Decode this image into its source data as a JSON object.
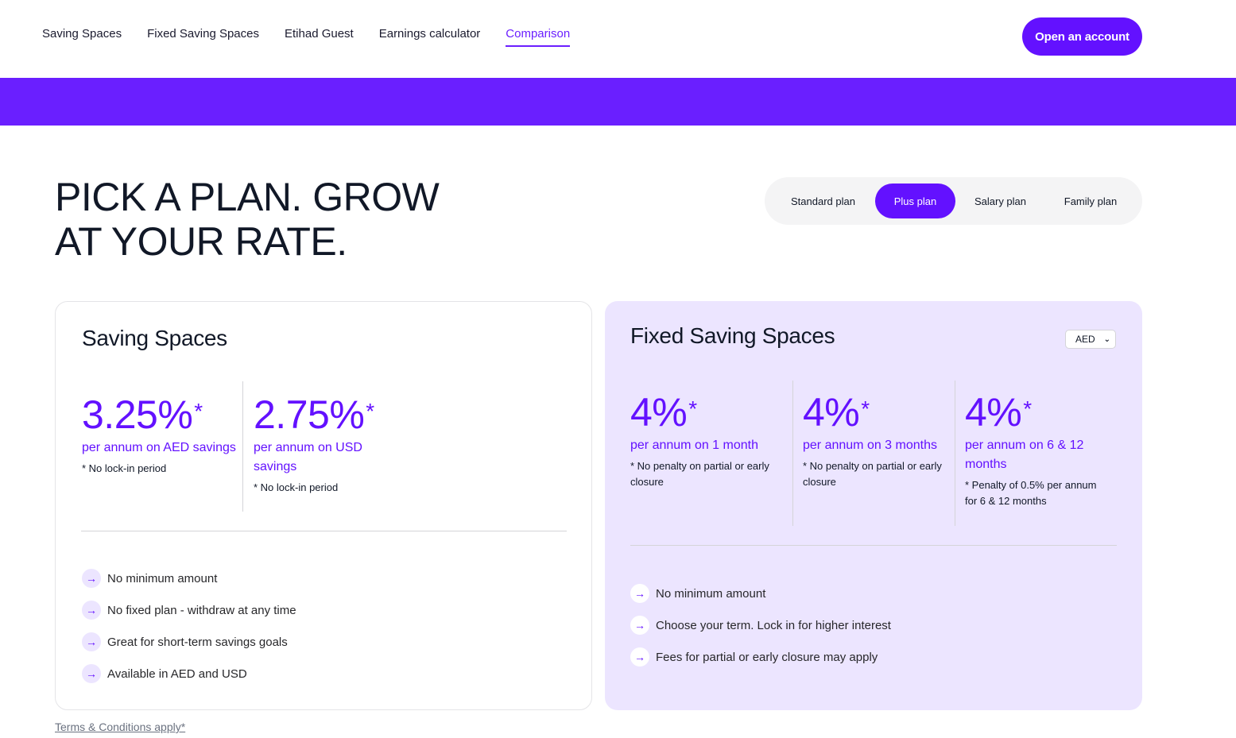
{
  "nav": {
    "links": [
      "Saving Spaces",
      "Fixed Saving Spaces",
      "Etihad Guest",
      "Earnings calculator",
      "Comparison"
    ],
    "active": "Comparison",
    "cta": "Open an account"
  },
  "hero": {
    "title_line1": "PICK A PLAN. GROW",
    "title_line2": "AT YOUR RATE."
  },
  "plans": {
    "tabs": [
      "Standard plan",
      "Plus plan",
      "Salary plan",
      "Family plan"
    ],
    "selected": "Plus plan"
  },
  "saving_spaces": {
    "title": "Saving Spaces",
    "rates": [
      {
        "value": "3.25%",
        "star": "*",
        "label": "per annum on AED savings",
        "note": "* No lock-in period"
      },
      {
        "value": "2.75%",
        "star": "*",
        "label": "per annum on USD savings",
        "note": "* No lock-in period"
      }
    ],
    "features": [
      "No minimum amount",
      "No fixed plan - withdraw at any time",
      "Great for short-term savings goals",
      "Available in AED and USD"
    ]
  },
  "fixed_saving_spaces": {
    "title": "Fixed Saving Spaces",
    "currency": "AED",
    "rates": [
      {
        "value": "4%",
        "star": "*",
        "label": "per annum on 1 month",
        "note": "* No penalty on partial or early closure"
      },
      {
        "value": "4%",
        "star": "*",
        "label": "per annum on 3 months",
        "note": "* No penalty on partial or early closure"
      },
      {
        "value": "4%",
        "star": "*",
        "label": "per annum on 6 & 12 months",
        "note": "* Penalty of 0.5% per annum for 6 & 12 months"
      }
    ],
    "features": [
      "No minimum amount",
      "Choose your term. Lock in for higher interest",
      "Fees for partial or early closure may apply"
    ]
  },
  "footer": {
    "terms": "Terms & Conditions apply*"
  },
  "colors": {
    "accent": "#6311ff",
    "banner": "#6a1fff",
    "fixed_card_bg": "#ece5ff"
  },
  "icons": {
    "feature_bullet": "arrow-right-icon",
    "currency_dropdown": "chevron-down-icon"
  }
}
